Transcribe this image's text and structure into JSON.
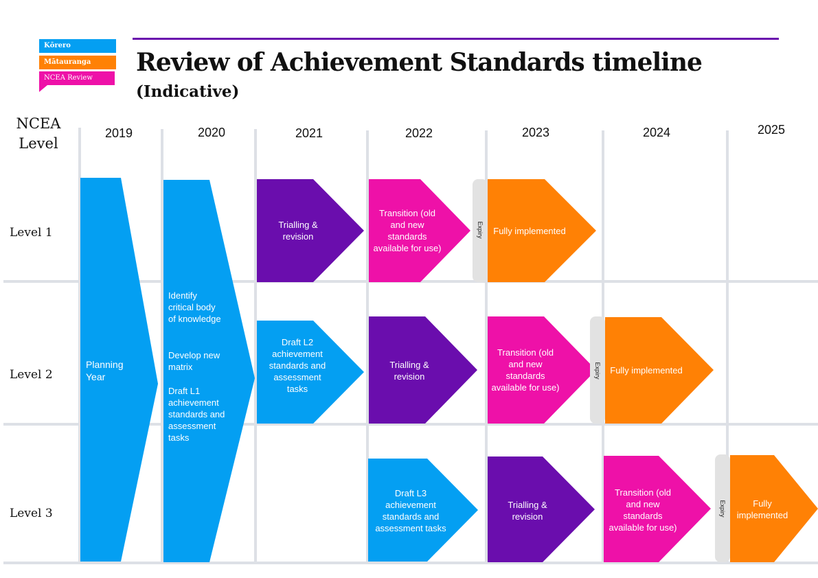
{
  "logo": {
    "line1": "Kōrero",
    "line2": "Mātauranga",
    "line3": "NCEA Review"
  },
  "title": "Review of Achievement Standards timeline",
  "subtitle": "(Indicative)",
  "colors": {
    "blue": "#049ff2",
    "purple": "#6a0dad",
    "magenta": "#ee11a8",
    "orange": "#ff8105",
    "grid": "#dde0e6",
    "expiry": "#e2e2e2"
  },
  "header": {
    "ncea_line1": "NCEA",
    "ncea_line2": "Level"
  },
  "years": [
    "2019",
    "2020",
    "2021",
    "2022",
    "2023",
    "2024",
    "2025"
  ],
  "levels": [
    "Level 1",
    "Level 2",
    "Level 3"
  ],
  "phases": {
    "planning": "Planning Year",
    "development": [
      "Identify critical body of knowledge",
      "Develop new matrix",
      "Draft L1 achievement standards and assessment tasks"
    ],
    "l1_trial": "Trialling & revision",
    "l1_transition": "Transition (old and new standards available for use)",
    "l1_expiry": "Expiry",
    "l1_full": "Fully implemented",
    "l2_draft": "Draft L2 achievement standards and assessment tasks",
    "l2_trial": "Trialling & revision",
    "l2_transition": "Transition (old and new standards available for use)",
    "l2_expiry": "Expiry",
    "l2_full": "Fully implemented",
    "l3_draft": "Draft L3 achievement standards and assessment tasks",
    "l3_trial": "Trialling & revision",
    "l3_transition": "Transition (old and new standards available for use)",
    "l3_expiry": "Expiry",
    "l3_full": "Fully implemented"
  }
}
